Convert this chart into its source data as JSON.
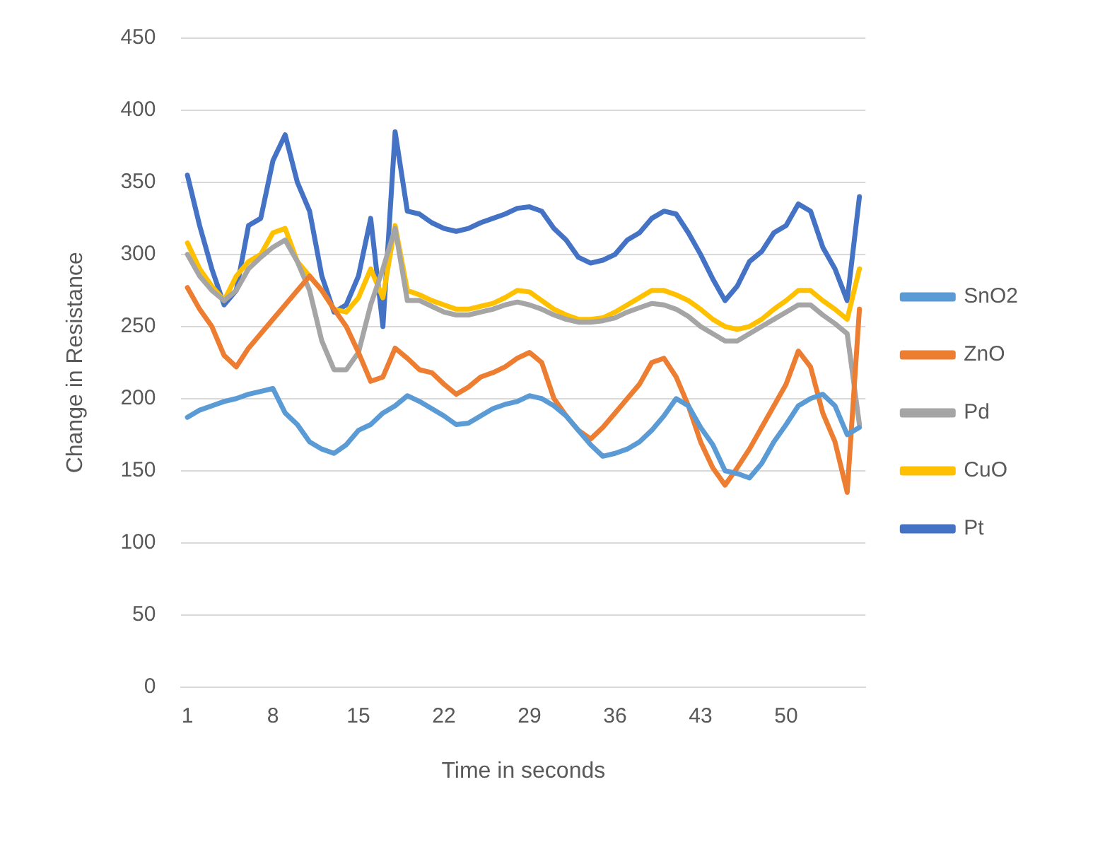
{
  "chart_data": {
    "type": "line",
    "xlabel": "Time in seconds",
    "ylabel": "Change in Resistance",
    "categories": [
      "1",
      null,
      null,
      null,
      null,
      null,
      null,
      "8",
      null,
      null,
      null,
      null,
      null,
      null,
      "15",
      null,
      null,
      null,
      null,
      null,
      null,
      "22",
      null,
      null,
      null,
      null,
      null,
      null,
      "29",
      null,
      null,
      null,
      null,
      null,
      null,
      "36",
      null,
      null,
      null,
      null,
      null,
      null,
      "43",
      null,
      null,
      null,
      null,
      null,
      null,
      "50",
      null,
      null,
      null,
      null,
      null,
      null
    ],
    "series": [
      {
        "name": "SnO2",
        "color": "#5b9bd5",
        "values": [
          187,
          192,
          195,
          198,
          200,
          203,
          205,
          207,
          190,
          182,
          170,
          165,
          162,
          168,
          178,
          182,
          190,
          195,
          202,
          198,
          193,
          188,
          182,
          183,
          188,
          193,
          196,
          198,
          202,
          200,
          195,
          188,
          178,
          168,
          160,
          162,
          165,
          170,
          178,
          188,
          200,
          195,
          180,
          168,
          150,
          148,
          145,
          155,
          170,
          182,
          195,
          200,
          203,
          195,
          175,
          180
        ]
      },
      {
        "name": "ZnO",
        "color": "#ed7d31",
        "values": [
          277,
          262,
          250,
          230,
          222,
          235,
          245,
          255,
          265,
          275,
          285,
          275,
          262,
          250,
          232,
          212,
          215,
          235,
          228,
          220,
          218,
          210,
          203,
          208,
          215,
          218,
          222,
          228,
          232,
          225,
          200,
          188,
          178,
          172,
          180,
          190,
          200,
          210,
          225,
          228,
          215,
          195,
          170,
          152,
          140,
          152,
          165,
          180,
          195,
          210,
          233,
          222,
          190,
          170,
          135,
          262
        ]
      },
      {
        "name": "Pd",
        "color": "#a5a5a5",
        "values": [
          300,
          285,
          275,
          268,
          275,
          290,
          298,
          305,
          310,
          295,
          275,
          240,
          220,
          220,
          232,
          265,
          290,
          318,
          268,
          268,
          264,
          260,
          258,
          258,
          260,
          262,
          265,
          267,
          265,
          262,
          258,
          255,
          253,
          253,
          254,
          256,
          260,
          263,
          266,
          265,
          262,
          257,
          250,
          245,
          240,
          240,
          245,
          250,
          255,
          260,
          265,
          265,
          258,
          252,
          245,
          182
        ]
      },
      {
        "name": "CuO",
        "color": "#ffc000",
        "values": [
          308,
          290,
          278,
          268,
          285,
          295,
          300,
          315,
          318,
          295,
          285,
          275,
          262,
          260,
          270,
          290,
          270,
          320,
          275,
          272,
          268,
          265,
          262,
          262,
          264,
          266,
          270,
          275,
          274,
          268,
          262,
          258,
          255,
          255,
          256,
          260,
          265,
          270,
          275,
          275,
          272,
          268,
          262,
          255,
          250,
          248,
          250,
          255,
          262,
          268,
          275,
          275,
          268,
          262,
          255,
          290
        ]
      },
      {
        "name": "Pt",
        "color": "#4472c4",
        "values": [
          355,
          320,
          290,
          265,
          275,
          320,
          325,
          365,
          383,
          350,
          330,
          285,
          260,
          265,
          285,
          325,
          250,
          385,
          330,
          328,
          322,
          318,
          316,
          318,
          322,
          325,
          328,
          332,
          333,
          330,
          318,
          310,
          298,
          294,
          296,
          300,
          310,
          315,
          325,
          330,
          328,
          315,
          300,
          283,
          268,
          278,
          295,
          302,
          315,
          320,
          335,
          330,
          305,
          290,
          268,
          340
        ]
      }
    ],
    "ylim": [
      0,
      450
    ],
    "yticks": [
      0,
      50,
      100,
      150,
      200,
      250,
      300,
      350,
      400,
      450
    ],
    "grid": "y",
    "legend": "right",
    "marker": "none",
    "line_style": "solid"
  }
}
